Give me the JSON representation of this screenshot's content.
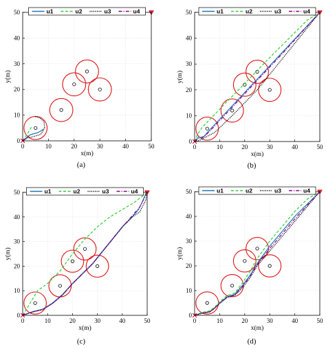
{
  "figure": {
    "axis_xlabel": "x(m)",
    "axis_ylabel": "y(m)",
    "ticks": [
      "0",
      "10",
      "20",
      "30",
      "40",
      "50"
    ],
    "legend": [
      "u1",
      "u2",
      "u3",
      "u4"
    ]
  },
  "colors": {
    "u1": "#1f77b4",
    "u2": "#33cc33",
    "u3": "#000000",
    "u4": "#8b008b",
    "obstacle": "#dd1111",
    "goal": "#e8202a"
  },
  "chart_data": [
    {
      "panel": "(a)",
      "type": "line",
      "xlabel": "x(m)",
      "ylabel": "y(m)",
      "xlim": [
        0,
        50
      ],
      "ylim": [
        0,
        50
      ],
      "grid": true,
      "legend": "top-center",
      "obstacles": [
        {
          "cx": 5,
          "cy": 5,
          "r": 4.5
        },
        {
          "cx": 15,
          "cy": 12,
          "r": 4.5
        },
        {
          "cx": 20,
          "cy": 22,
          "r": 4.5
        },
        {
          "cx": 25,
          "cy": 27,
          "r": 4.5
        },
        {
          "cx": 30,
          "cy": 20,
          "r": 4.5
        }
      ],
      "goal": [
        50,
        50
      ],
      "series": [
        {
          "name": "u1",
          "style": "solid",
          "x": [
            0,
            1.5,
            3,
            6,
            8
          ],
          "y": [
            0,
            1.2,
            2.4,
            3.2,
            4.5
          ]
        },
        {
          "name": "u2",
          "style": "dashed",
          "x": [
            0,
            1,
            2,
            3.5
          ],
          "y": [
            0,
            1.5,
            3,
            5.5
          ]
        },
        {
          "name": "u3",
          "style": "dotted",
          "x": [
            0,
            1,
            2,
            4,
            7,
            8.5,
            8.3,
            6.5,
            4.5
          ],
          "y": [
            0,
            0.6,
            1.2,
            1.6,
            2.5,
            5,
            7.5,
            9,
            9.5
          ]
        },
        {
          "name": "u4",
          "style": "dashdot",
          "x": [
            0,
            1.2,
            2.5
          ],
          "y": [
            0,
            1,
            2
          ]
        }
      ]
    },
    {
      "panel": "(b)",
      "type": "line",
      "xlabel": "x(m)",
      "ylabel": "y(m)",
      "xlim": [
        0,
        50
      ],
      "ylim": [
        0,
        50
      ],
      "grid": true,
      "legend": "top-center",
      "obstacles": [
        {
          "cx": 5,
          "cy": 5,
          "r": 4.5
        },
        {
          "cx": 15,
          "cy": 12,
          "r": 4.5
        },
        {
          "cx": 20,
          "cy": 22,
          "r": 4.5
        },
        {
          "cx": 25,
          "cy": 27,
          "r": 4.5
        },
        {
          "cx": 30,
          "cy": 20,
          "r": 4.5
        }
      ],
      "goal": [
        50,
        50
      ],
      "series": [
        {
          "name": "u1",
          "style": "solid",
          "x": [
            0,
            1.5,
            3,
            6,
            20,
            35,
            50
          ],
          "y": [
            0,
            1.8,
            1.2,
            4.5,
            19,
            34.5,
            50
          ]
        },
        {
          "name": "u2",
          "style": "dashed",
          "x": [
            0,
            1,
            3,
            5,
            15,
            30,
            45,
            50
          ],
          "y": [
            0,
            2.5,
            5.5,
            7.5,
            17.5,
            32.5,
            47,
            50
          ]
        },
        {
          "name": "u3",
          "style": "dotted",
          "x": [
            0,
            2,
            5,
            8,
            15,
            25,
            35,
            50
          ],
          "y": [
            0,
            0.5,
            2,
            3.5,
            10,
            20,
            32,
            50
          ]
        },
        {
          "name": "u4",
          "style": "dashdot",
          "x": [
            0,
            2,
            4,
            8,
            20,
            35,
            50
          ],
          "y": [
            0,
            1.5,
            2,
            6,
            18.5,
            34,
            50
          ]
        }
      ]
    },
    {
      "panel": "(c)",
      "type": "line",
      "xlabel": "x(m)",
      "ylabel": "y(m)",
      "xlim": [
        0,
        50
      ],
      "ylim": [
        0,
        50
      ],
      "grid": true,
      "legend": "top-center",
      "obstacles": [
        {
          "cx": 5,
          "cy": 5,
          "r": 4.5
        },
        {
          "cx": 15,
          "cy": 12,
          "r": 4.5
        },
        {
          "cx": 20,
          "cy": 22,
          "r": 4.5
        },
        {
          "cx": 25,
          "cy": 27,
          "r": 4.5
        },
        {
          "cx": 30,
          "cy": 20,
          "r": 4.5
        }
      ],
      "goal": [
        50,
        50
      ],
      "series": [
        {
          "name": "u1",
          "style": "solid",
          "x": [
            0,
            4,
            8,
            12,
            16,
            20,
            24,
            28,
            32,
            36,
            40,
            44,
            46.5,
            48,
            49,
            50
          ],
          "y": [
            0,
            1.5,
            2.5,
            5,
            8.5,
            13,
            17,
            21,
            26,
            31,
            36,
            40,
            43,
            46,
            48.5,
            50
          ]
        },
        {
          "name": "u2",
          "style": "dashed",
          "x": [
            0,
            3,
            6,
            10,
            15,
            20,
            25,
            30,
            35,
            40,
            45,
            50
          ],
          "y": [
            0,
            5,
            10,
            13,
            18,
            25,
            31,
            36,
            40,
            43,
            46,
            50
          ]
        },
        {
          "name": "u3",
          "style": "dotted",
          "x": [
            0,
            4,
            8,
            12,
            16,
            20,
            24,
            28,
            32,
            36,
            40,
            44,
            47,
            49.5,
            50
          ],
          "y": [
            0,
            1.3,
            2.3,
            4.8,
            8.2,
            12.8,
            16.8,
            20.8,
            25.8,
            30.8,
            35.8,
            40,
            42,
            47,
            50
          ]
        },
        {
          "name": "u4",
          "style": "dashdot",
          "x": [
            0,
            4,
            8,
            12,
            16,
            20,
            24,
            28,
            32,
            36,
            40,
            44,
            47,
            49,
            50
          ],
          "y": [
            0,
            1.4,
            2.4,
            4.9,
            8.3,
            12.9,
            16.9,
            20.9,
            25.9,
            30.9,
            35.9,
            40.5,
            44,
            48,
            50
          ]
        }
      ]
    },
    {
      "panel": "(d)",
      "type": "line",
      "xlabel": "x(m)",
      "ylabel": "y(m)",
      "xlim": [
        0,
        50
      ],
      "ylim": [
        0,
        50
      ],
      "grid": true,
      "legend": "top-center",
      "obstacles": [
        {
          "cx": 5,
          "cy": 5,
          "r": 4.5
        },
        {
          "cx": 15,
          "cy": 12,
          "r": 4.5
        },
        {
          "cx": 20,
          "cy": 22,
          "r": 4.5
        },
        {
          "cx": 25,
          "cy": 27,
          "r": 4.5
        },
        {
          "cx": 30,
          "cy": 20,
          "r": 4.5
        }
      ],
      "goal": [
        50,
        50
      ],
      "series": [
        {
          "name": "u1",
          "style": "solid",
          "x": [
            0,
            3,
            6,
            8,
            10,
            13,
            16,
            19,
            22,
            25,
            30,
            35,
            40,
            45,
            50
          ],
          "y": [
            0,
            1,
            1.5,
            3,
            5,
            7.5,
            8.5,
            12,
            16,
            21,
            28,
            34,
            40,
            45,
            50
          ]
        },
        {
          "name": "u2",
          "style": "dashed",
          "x": [
            0,
            3,
            6,
            8,
            10,
            13,
            16,
            19,
            22,
            25,
            30,
            35,
            40,
            45,
            50
          ],
          "y": [
            0,
            1.2,
            1.8,
            3.3,
            5.5,
            8,
            9,
            13,
            17.5,
            23,
            30,
            36,
            42,
            47,
            50
          ]
        },
        {
          "name": "u3",
          "style": "dotted",
          "x": [
            0,
            3,
            6,
            8,
            10,
            13,
            16,
            19,
            22,
            25,
            30,
            35,
            40,
            45,
            50
          ],
          "y": [
            0,
            0.8,
            1.3,
            2.8,
            4.8,
            7.2,
            8,
            11,
            15,
            20,
            26,
            32,
            38,
            44,
            50
          ]
        },
        {
          "name": "u4",
          "style": "dashdot",
          "x": [
            0,
            3,
            6,
            8,
            10,
            13,
            16,
            19,
            22,
            25,
            30,
            35,
            40,
            45,
            50
          ],
          "y": [
            0,
            0.9,
            1.4,
            2.9,
            4.9,
            7.3,
            8.2,
            11.5,
            15.5,
            20.5,
            27,
            33,
            39,
            44.5,
            50
          ]
        }
      ]
    }
  ]
}
